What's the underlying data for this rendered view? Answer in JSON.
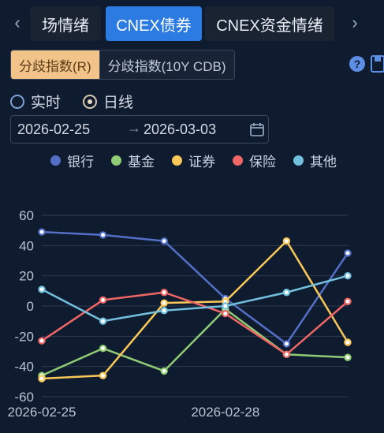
{
  "tabs": {
    "prev_icon": "chevron-left-icon",
    "next_icon": "chevron-right-icon",
    "items": [
      {
        "label": "场情绪",
        "active": false
      },
      {
        "label": "CNEX债券",
        "active": true
      },
      {
        "label": "CNEX资金情绪",
        "active": false
      }
    ]
  },
  "segment": {
    "options": [
      "分歧指数(R)",
      "分歧指数(10Y CDB)"
    ],
    "selected": 0
  },
  "toolbar": {
    "help_label": "?",
    "help_icon": "help-icon",
    "save_icon": "save-icon"
  },
  "mode": {
    "options": [
      "实时",
      "日线"
    ],
    "selected": 1
  },
  "date_range": {
    "start": "2026-02-25",
    "separator": "→",
    "end": "2026-03-03",
    "icon": "calendar-icon"
  },
  "colors": {
    "accent": "#2b7be3",
    "segment_active": "#f3c48a"
  },
  "chart_data": {
    "type": "line",
    "x": [
      "2026-02-25",
      "2026-02-26",
      "2026-02-27",
      "2026-02-28",
      "2026-03-01",
      "2026-03-02"
    ],
    "x_tick_labels": [
      "2026-02-25",
      "2026-02-28"
    ],
    "ylim": [
      -60,
      60
    ],
    "y_ticks": [
      60,
      40,
      20,
      0,
      -20,
      -40,
      -60
    ],
    "grid": true,
    "legend_position": "top",
    "series": [
      {
        "name": "银行",
        "color": "#5470c6",
        "values": [
          49,
          47,
          43,
          5,
          -25,
          35
        ]
      },
      {
        "name": "基金",
        "color": "#91cc75",
        "values": [
          -46,
          -28,
          -43,
          -2,
          -32,
          -34
        ]
      },
      {
        "name": "证券",
        "color": "#fac858",
        "values": [
          -48,
          -46,
          2,
          3,
          43,
          -24
        ]
      },
      {
        "name": "保险",
        "color": "#ee6666",
        "values": [
          -23,
          4,
          9,
          -5,
          -32,
          3
        ]
      },
      {
        "name": "其他",
        "color": "#73c0de",
        "values": [
          11,
          -10,
          -3,
          0,
          9,
          20
        ]
      }
    ]
  }
}
